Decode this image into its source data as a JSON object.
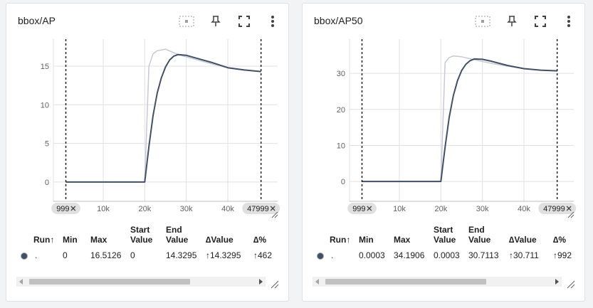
{
  "cards": [
    {
      "title": "bbox/AP",
      "toolbar": {
        "fit_icon": "fit-domain-icon",
        "pin_icon": "pin-icon",
        "fullscreen_icon": "fullscreen-icon",
        "more_icon": "more-vert-icon"
      },
      "chart_data": {
        "type": "line",
        "title": "bbox/AP",
        "xlabel": "",
        "ylabel": "",
        "xlim": [
          -2000,
          52000
        ],
        "ylim": [
          -2.5,
          18.5
        ],
        "y_ticks": [
          0,
          5,
          10,
          15
        ],
        "y_tick_labels": [
          "0",
          "5",
          "10",
          "15"
        ],
        "x_ticks": [
          10000,
          20000,
          30000,
          40000
        ],
        "x_tick_labels": [
          "10k",
          "20k",
          "30k",
          "40k"
        ],
        "range_start_label": "999",
        "range_end_label": "47999",
        "range_start": 999,
        "range_end": 47999,
        "grid": true,
        "series": [
          {
            "role": "raw",
            "color": "#c6cad5",
            "x": [
              999,
              19999,
              20999,
              21999,
              22999,
              24999,
              27999,
              31999,
              35999,
              39999,
              43999,
              47999
            ],
            "y": [
              0,
              0,
              15.0,
              16.6,
              17.0,
              17.2,
              16.5,
              15.9,
              15.3,
              14.8,
              14.5,
              14.3
            ]
          },
          {
            "role": "smoothed",
            "color": "#425066",
            "x": [
              999,
              19999,
              20999,
              21999,
              22999,
              23999,
              24999,
              25999,
              26999,
              27999,
              29999,
              31999,
              35999,
              39999,
              43999,
              47999
            ],
            "y": [
              0,
              0,
              4.6,
              8.6,
              11.5,
              13.5,
              14.9,
              15.8,
              16.3,
              16.5,
              16.4,
              16.1,
              15.5,
              14.8,
              14.5,
              14.3
            ]
          }
        ]
      },
      "table": {
        "headers": {
          "run": "Run",
          "run_sort_arrow": "↑",
          "min": "Min",
          "max": "Max",
          "start_value": [
            "Start",
            "Value"
          ],
          "end_value": [
            "End",
            "Value"
          ],
          "delta_value": "∆Value",
          "delta_pct": "∆%"
        },
        "rows": [
          {
            "run": ".",
            "run_color": "#425066",
            "min": "0",
            "max": "16.5126",
            "start_value": "0",
            "end_value": "14.3295",
            "delta_value": "↑14.3295",
            "delta_pct": "↑462"
          }
        ]
      }
    },
    {
      "title": "bbox/AP50",
      "toolbar": {
        "fit_icon": "fit-domain-icon",
        "pin_icon": "pin-icon",
        "fullscreen_icon": "fullscreen-icon",
        "more_icon": "more-vert-icon"
      },
      "chart_data": {
        "type": "line",
        "title": "bbox/AP50",
        "xlabel": "",
        "ylabel": "",
        "xlim": [
          -2000,
          52000
        ],
        "ylim": [
          -5.5,
          39.5
        ],
        "y_ticks": [
          0,
          10,
          20,
          30
        ],
        "y_tick_labels": [
          "0",
          "10",
          "20",
          "30"
        ],
        "x_ticks": [
          10000,
          20000,
          30000,
          40000
        ],
        "x_tick_labels": [
          "10k",
          "20k",
          "30k",
          "40k"
        ],
        "range_start_label": "999",
        "range_end_label": "47999",
        "range_start": 999,
        "range_end": 47999,
        "grid": true,
        "series": [
          {
            "role": "raw",
            "color": "#c6cad5",
            "x": [
              999,
              19999,
              20999,
              21999,
              22999,
              24999,
              27999,
              31999,
              35999,
              39999,
              43999,
              47999
            ],
            "y": [
              0.0003,
              0.0003,
              33.0,
              34.4,
              34.8,
              34.6,
              33.8,
              32.8,
              32.0,
              31.3,
              30.9,
              30.7
            ]
          },
          {
            "role": "smoothed",
            "color": "#425066",
            "x": [
              999,
              19999,
              20999,
              21999,
              22999,
              23999,
              24999,
              25999,
              26999,
              27999,
              29999,
              31999,
              35999,
              39999,
              43999,
              47999
            ],
            "y": [
              0.0003,
              0.0003,
              9.5,
              17.8,
              23.8,
              28.0,
              30.8,
              32.5,
              33.5,
              34.0,
              33.9,
              33.4,
              32.2,
              31.3,
              30.9,
              30.7
            ]
          }
        ]
      },
      "table": {
        "headers": {
          "run": "Run",
          "run_sort_arrow": "↑",
          "min": "Min",
          "max": "Max",
          "start_value": [
            "Start",
            "Value"
          ],
          "end_value": [
            "End",
            "Value"
          ],
          "delta_value": "∆Value",
          "delta_pct": "∆%"
        },
        "rows": [
          {
            "run": ".",
            "run_color": "#425066",
            "min": "0.0003",
            "max": "34.1906",
            "start_value": "0.0003",
            "end_value": "30.7113",
            "delta_value": "↑30.711",
            "delta_pct": "↑992"
          }
        ]
      }
    }
  ]
}
